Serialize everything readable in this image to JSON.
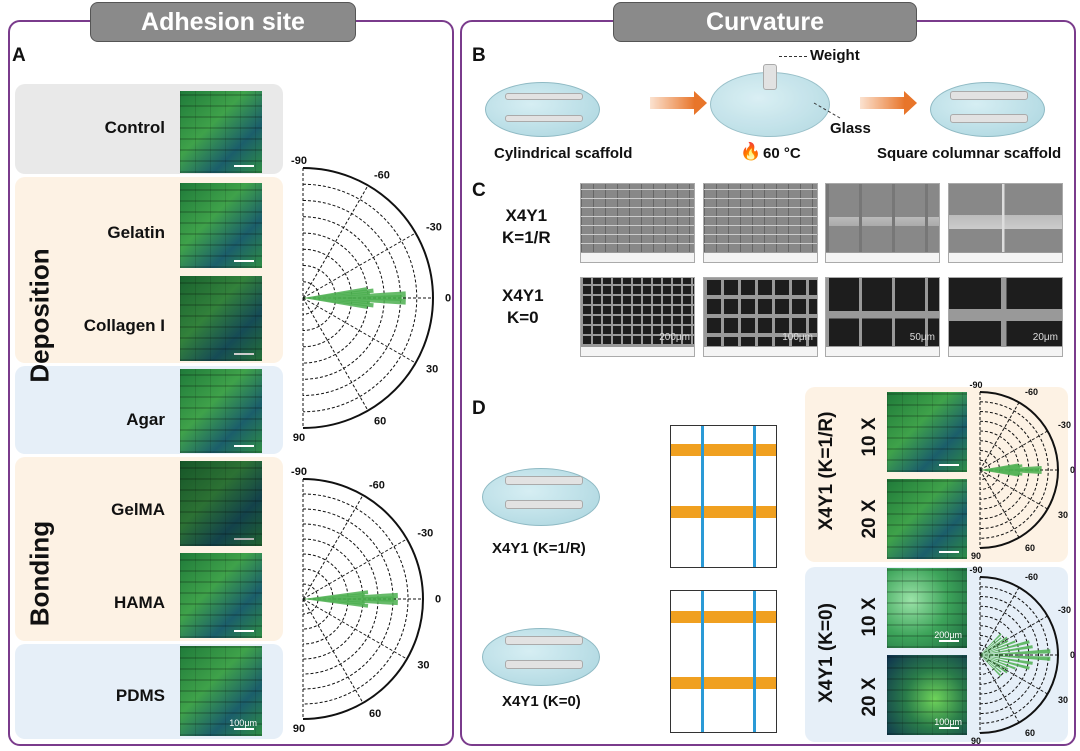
{
  "left": {
    "header": "Adhesion site",
    "panel_label": "A",
    "groups": {
      "deposition": "Deposition",
      "bonding": "Bonding"
    },
    "rows": [
      {
        "label": "Control"
      },
      {
        "label": "Gelatin"
      },
      {
        "label": "Collagen I"
      },
      {
        "label": "Agar"
      },
      {
        "label": "GelMA"
      },
      {
        "label": "HAMA"
      },
      {
        "label": "PDMS",
        "scale": "100μm"
      }
    ],
    "polar_ticks": [
      "-90",
      "-60",
      "-30",
      "0",
      "30",
      "60",
      "90"
    ]
  },
  "right": {
    "header": "Curvature",
    "b": {
      "panel_label": "B",
      "weight": "Weight",
      "glass": "Glass",
      "temp": "60 °C",
      "left_caption": "Cylindrical scaffold",
      "right_caption": "Square columnar scaffold"
    },
    "c": {
      "panel_label": "C",
      "row1": [
        "X4Y1",
        "K=1/R"
      ],
      "row2": [
        "X4Y1",
        "K=0"
      ],
      "scales": [
        "200μm",
        "100μm",
        "50μm",
        "20μm"
      ]
    },
    "d": {
      "panel_label": "D",
      "cap1": "X4Y1 (K=1/R)",
      "cap2": "X4Y1 (K=0)",
      "box1": "X4Y1 (K=1/R)",
      "box2": "X4Y1 (K=0)",
      "mag10": "10 X",
      "mag20": "20 X",
      "scale200": "200μm",
      "scale100": "100μm"
    }
  },
  "colors": {
    "border": "#7a3b8c",
    "header": "#8a8a8a",
    "control_bg": "#e9e9e9",
    "orange_bg": "#fdf2e4",
    "blue_bg": "#e6eff8",
    "rose": "#4caf50",
    "arrow": "#e8752a"
  }
}
